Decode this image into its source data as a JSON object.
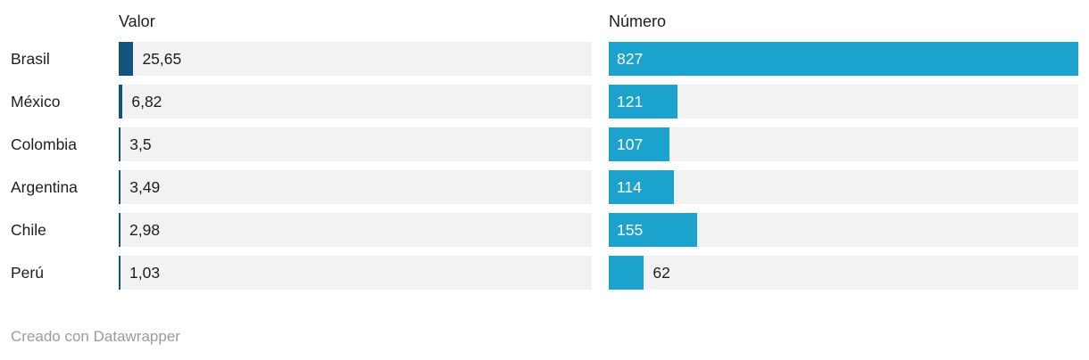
{
  "chart_data": {
    "type": "bar",
    "orientation": "horizontal",
    "categories": [
      "Brasil",
      "México",
      "Colombia",
      "Argentina",
      "Chile",
      "Perú"
    ],
    "series": [
      {
        "name": "Valor",
        "values": [
          25.65,
          6.82,
          3.5,
          3.49,
          2.98,
          1.03
        ],
        "display_labels": [
          "25,65",
          "6,82",
          "3,5",
          "3,49",
          "2,98",
          "1,03"
        ],
        "label_position": "outside-right",
        "bar_color": "#14537a"
      },
      {
        "name": "Número",
        "values": [
          827,
          121,
          107,
          114,
          155,
          62
        ],
        "display_labels": [
          "827",
          "121",
          "107",
          "114",
          "155",
          "62"
        ],
        "label_position": "inside-left-or-outside-if-narrow",
        "bar_color": "#1ba3ce"
      }
    ],
    "axis_min": 0,
    "shared_axis_max": 827,
    "grid": false,
    "legend": "column-headers",
    "track_background": "#f2f2f2"
  },
  "columns": {
    "valor_header": "Valor",
    "numero_header": "Número"
  },
  "footer": {
    "attribution": "Creado con Datawrapper"
  },
  "colors": {
    "valor_bar": "#14537a",
    "numero_bar": "#1ba3ce",
    "track": "#f2f2f2",
    "text": "#1d1d1d",
    "bar_label_light": "#ffffff",
    "footer_text": "#9b9b9b",
    "background": "#ffffff"
  },
  "layout": {
    "valor_track_width": 530,
    "numero_track_width": 526,
    "min_bar_width": 2,
    "inside_label_min_width": 55,
    "outside_label_gap": 10
  }
}
